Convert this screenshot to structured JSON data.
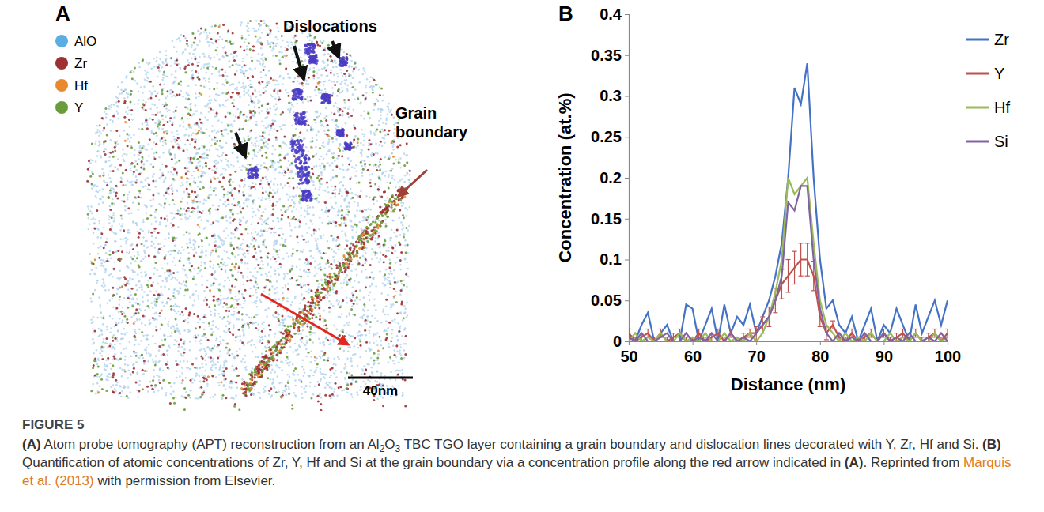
{
  "panel_letters": [
    "A",
    "B"
  ],
  "panel_a": {
    "legend": [
      {
        "name": "AlO",
        "color": "#5aaee2"
      },
      {
        "name": "Zr",
        "color": "#9e2f33"
      },
      {
        "name": "Hf",
        "color": "#e8892f"
      },
      {
        "name": "Y",
        "color": "#6b9c3b"
      }
    ],
    "dislocations_label": "Dislocations",
    "grain_boundary_label": "Grain boundary",
    "scale_bar": "40nm"
  },
  "chart_data": {
    "type": "line",
    "x_label": "Distance (nm)",
    "y_label": "Concentration (at.%)",
    "x": [
      50,
      51,
      52,
      53,
      54,
      55,
      56,
      57,
      58,
      59,
      60,
      61,
      62,
      63,
      64,
      65,
      66,
      67,
      68,
      69,
      70,
      71,
      72,
      73,
      74,
      75,
      76,
      77,
      78,
      79,
      80,
      81,
      82,
      83,
      84,
      85,
      86,
      87,
      88,
      89,
      90,
      91,
      92,
      93,
      94,
      95,
      96,
      97,
      98,
      99,
      100
    ],
    "series": [
      {
        "name": "Zr",
        "color": "#4472c4",
        "values": [
          0.01,
          0,
          0.02,
          0.035,
          0,
          0.01,
          0.02,
          0,
          0,
          0.045,
          0.04,
          0,
          0.02,
          0.04,
          0,
          0.045,
          0.01,
          0.03,
          0.02,
          0.045,
          0.01,
          0.03,
          0.05,
          0.08,
          0.12,
          0.2,
          0.31,
          0.29,
          0.34,
          0.2,
          0.1,
          0.04,
          0.05,
          0.02,
          0.01,
          0.03,
          0,
          0.02,
          0.04,
          0,
          0.02,
          0.01,
          0.04,
          0.02,
          0,
          0.045,
          0.01,
          0.03,
          0.05,
          0.02,
          0.05
        ]
      },
      {
        "name": "Y",
        "color": "#c0504d",
        "values": [
          0.01,
          0,
          0.005,
          0.01,
          0,
          0.01,
          0,
          0.005,
          0.01,
          0,
          0,
          0.01,
          0,
          0.005,
          0.01,
          0,
          0.01,
          0,
          0.005,
          0.01,
          0.01,
          0.02,
          0.03,
          0.05,
          0.07,
          0.08,
          0.09,
          0.1,
          0.1,
          0.08,
          0.03,
          0.01,
          0.02,
          0.005,
          0,
          0.01,
          0,
          0.005,
          0.01,
          0,
          0.01,
          0,
          0.005,
          0.01,
          0,
          0.01,
          0,
          0.005,
          0.01,
          0,
          0.01
        ],
        "errors": [
          0.005,
          0.005,
          0.005,
          0.005,
          0.005,
          0.005,
          0.005,
          0.005,
          0.005,
          0.005,
          0.005,
          0.005,
          0.005,
          0.005,
          0.005,
          0.005,
          0.005,
          0.005,
          0.005,
          0.005,
          0.008,
          0.01,
          0.012,
          0.015,
          0.018,
          0.02,
          0.02,
          0.02,
          0.02,
          0.018,
          0.012,
          0.008,
          0.005,
          0.005,
          0.005,
          0.005,
          0.005,
          0.005,
          0.005,
          0.005,
          0.005,
          0.005,
          0.005,
          0.005,
          0.005,
          0.005,
          0.005,
          0.005,
          0.005,
          0.005,
          0.005
        ]
      },
      {
        "name": "Hf",
        "color": "#9bbb59",
        "values": [
          0,
          0.01,
          0,
          0.005,
          0,
          0.01,
          0,
          0,
          0.01,
          0,
          0.005,
          0,
          0.01,
          0,
          0,
          0.01,
          0,
          0.005,
          0,
          0.01,
          0,
          0.01,
          0.03,
          0.06,
          0.1,
          0.2,
          0.18,
          0.19,
          0.2,
          0.12,
          0.05,
          0.02,
          0.01,
          0,
          0.01,
          0,
          0.005,
          0,
          0.01,
          0,
          0,
          0.01,
          0,
          0.005,
          0,
          0.01,
          0,
          0,
          0.01,
          0,
          0.005
        ]
      },
      {
        "name": "Si",
        "color": "#8064a2",
        "values": [
          0.005,
          0,
          0.01,
          0,
          0,
          0.005,
          0.01,
          0,
          0,
          0.01,
          0,
          0.005,
          0,
          0.01,
          0,
          0,
          0.01,
          0,
          0.005,
          0,
          0.01,
          0.02,
          0.03,
          0.05,
          0.08,
          0.17,
          0.16,
          0.19,
          0.19,
          0.1,
          0.04,
          0.01,
          0,
          0.01,
          0,
          0.005,
          0,
          0.01,
          0,
          0,
          0.01,
          0,
          0.005,
          0,
          0.01,
          0,
          0,
          0.005,
          0,
          0.01,
          0
        ]
      }
    ],
    "xlim": [
      50,
      100
    ],
    "xticks": [
      50,
      60,
      70,
      80,
      90,
      100
    ],
    "ylim": [
      0,
      0.4
    ],
    "yticks": [
      0,
      0.05,
      0.1,
      0.15,
      0.2,
      0.25,
      0.3,
      0.35,
      0.4
    ],
    "grid": false,
    "legend": "right"
  },
  "caption": {
    "label": "FIGURE 5",
    "segments": [
      {
        "text": "(A)",
        "style": "bold"
      },
      {
        "text": " Atom probe tomography (APT) reconstruction from an Al",
        "style": "plain"
      },
      {
        "text": "2",
        "style": "sub"
      },
      {
        "text": "O",
        "style": "plain"
      },
      {
        "text": "3",
        "style": "sub"
      },
      {
        "text": " TBC TGO layer containing a grain boundary and dislocation lines decorated with Y, Zr, Hf and Si. ",
        "style": "plain"
      },
      {
        "text": "(B)",
        "style": "bold"
      },
      {
        "text": " Quantification of atomic concentrations of Zr, Y, Hf and Si at the grain boundary via a concentration profile along the red arrow indicated in ",
        "style": "plain"
      },
      {
        "text": "(A)",
        "style": "bold"
      },
      {
        "text": ". Reprinted from ",
        "style": "plain"
      },
      {
        "text": "Marquis et al. (2013)",
        "style": "link"
      },
      {
        "text": " with permission from Elsevier.",
        "style": "plain"
      }
    ]
  }
}
